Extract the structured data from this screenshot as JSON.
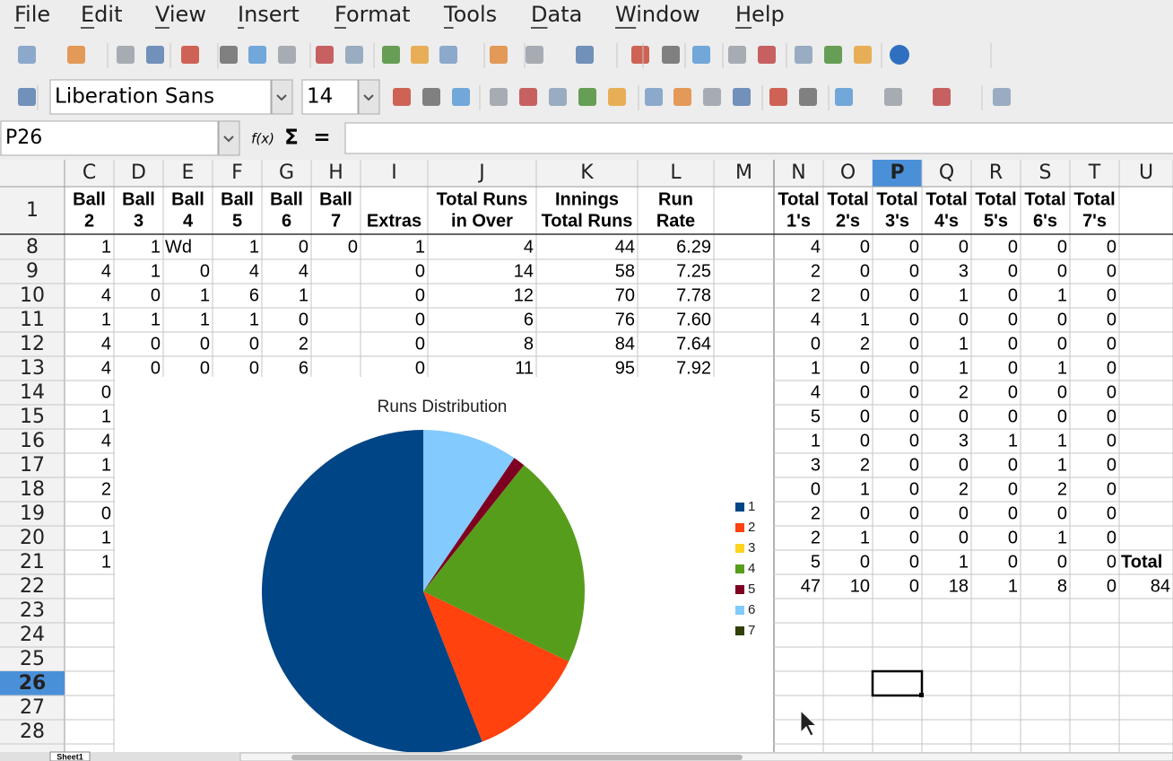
{
  "menu": [
    "File",
    "Edit",
    "View",
    "Insert",
    "Format",
    "Tools",
    "Data",
    "Window",
    "Help"
  ],
  "toolbar": {
    "font_name": "Liberation Sans",
    "font_size": "14"
  },
  "formula_bar": {
    "name_box": "P26",
    "buttons": [
      "f(x)",
      "Σ",
      "="
    ]
  },
  "sheet": {
    "tab": "Sheet1",
    "columns": [
      "C",
      "D",
      "E",
      "F",
      "G",
      "H",
      "I",
      "J",
      "K",
      "L",
      "M",
      "N",
      "O",
      "P",
      "Q",
      "R",
      "S",
      "T",
      "U"
    ],
    "header": {
      "number": "1",
      "cells": [
        [
          "Ball",
          "2"
        ],
        [
          "Ball",
          "3"
        ],
        [
          "Ball",
          "4"
        ],
        [
          "Ball",
          "5"
        ],
        [
          "Ball",
          "6"
        ],
        [
          "Ball",
          "7"
        ],
        [
          "Extras"
        ],
        [
          "Total Runs",
          "in Over"
        ],
        [
          "Innings",
          "Total Runs"
        ],
        [
          "Run",
          "Rate"
        ],
        null,
        [
          "Total",
          "1's"
        ],
        [
          "Total",
          "2's"
        ],
        [
          "Total",
          "3's"
        ],
        [
          "Total",
          "4's"
        ],
        [
          "Total",
          "5's"
        ],
        [
          "Total",
          "6's"
        ],
        [
          "Total",
          "7's"
        ],
        null
      ]
    },
    "rows": [
      {
        "number": "8",
        "cells": [
          "1",
          "1",
          "Wd",
          "1",
          "0",
          "0",
          "1",
          "4",
          "44",
          "6.29",
          null,
          "4",
          "0",
          "0",
          "0",
          "0",
          "0",
          "0",
          null
        ]
      },
      {
        "number": "9",
        "cells": [
          "4",
          "1",
          "0",
          "4",
          "4",
          null,
          "0",
          "14",
          "58",
          "7.25",
          null,
          "2",
          "0",
          "0",
          "3",
          "0",
          "0",
          "0",
          null
        ]
      },
      {
        "number": "10",
        "cells": [
          "4",
          "0",
          "1",
          "6",
          "1",
          null,
          "0",
          "12",
          "70",
          "7.78",
          null,
          "2",
          "0",
          "0",
          "1",
          "0",
          "1",
          "0",
          null
        ]
      },
      {
        "number": "11",
        "cells": [
          "1",
          "1",
          "1",
          "1",
          "0",
          null,
          "0",
          "6",
          "76",
          "7.60",
          null,
          "4",
          "1",
          "0",
          "0",
          "0",
          "0",
          "0",
          null
        ]
      },
      {
        "number": "12",
        "cells": [
          "4",
          "0",
          "0",
          "0",
          "2",
          null,
          "0",
          "8",
          "84",
          "7.64",
          null,
          "0",
          "2",
          "0",
          "1",
          "0",
          "0",
          "0",
          null
        ]
      },
      {
        "number": "13",
        "cells": [
          "4",
          "0",
          "0",
          "0",
          "6",
          null,
          "0",
          "11",
          "95",
          "7.92",
          null,
          "1",
          "0",
          "0",
          "1",
          "0",
          "1",
          "0",
          null
        ]
      },
      {
        "number": "14",
        "cells": [
          "0",
          null,
          null,
          null,
          null,
          null,
          null,
          null,
          null,
          null,
          null,
          "4",
          "0",
          "0",
          "2",
          "0",
          "0",
          "0",
          null
        ]
      },
      {
        "number": "15",
        "cells": [
          "1",
          null,
          null,
          null,
          null,
          null,
          null,
          null,
          null,
          null,
          null,
          "5",
          "0",
          "0",
          "0",
          "0",
          "0",
          "0",
          null
        ]
      },
      {
        "number": "16",
        "cells": [
          "4",
          null,
          null,
          null,
          null,
          null,
          null,
          null,
          null,
          null,
          null,
          "1",
          "0",
          "0",
          "3",
          "1",
          "1",
          "0",
          null
        ]
      },
      {
        "number": "17",
        "cells": [
          "1",
          null,
          null,
          null,
          null,
          null,
          null,
          null,
          null,
          null,
          null,
          "3",
          "2",
          "0",
          "0",
          "0",
          "1",
          "0",
          null
        ]
      },
      {
        "number": "18",
        "cells": [
          "2",
          null,
          null,
          null,
          null,
          null,
          null,
          null,
          null,
          null,
          null,
          "0",
          "1",
          "0",
          "2",
          "0",
          "2",
          "0",
          null
        ]
      },
      {
        "number": "19",
        "cells": [
          "0",
          null,
          null,
          null,
          null,
          null,
          null,
          null,
          null,
          null,
          null,
          "2",
          "0",
          "0",
          "0",
          "0",
          "0",
          "0",
          null
        ]
      },
      {
        "number": "20",
        "cells": [
          "1",
          null,
          null,
          null,
          null,
          null,
          null,
          null,
          null,
          null,
          null,
          "2",
          "1",
          "0",
          "0",
          "0",
          "1",
          "0",
          null
        ]
      },
      {
        "number": "21",
        "cells": [
          "1",
          null,
          null,
          null,
          null,
          null,
          null,
          null,
          null,
          null,
          null,
          "5",
          "0",
          "0",
          "1",
          "0",
          "0",
          "0",
          "Total"
        ]
      },
      {
        "number": "22",
        "cells": [
          null,
          null,
          null,
          null,
          null,
          null,
          null,
          null,
          null,
          null,
          null,
          "47",
          "10",
          "0",
          "18",
          "1",
          "8",
          "0",
          "84"
        ]
      },
      {
        "number": "23"
      },
      {
        "number": "24"
      },
      {
        "number": "25"
      },
      {
        "number": "26"
      },
      {
        "number": "27"
      },
      {
        "number": "28"
      }
    ]
  },
  "chart_data": {
    "type": "pie",
    "title": "Runs Distribution",
    "categories": [
      "1",
      "2",
      "3",
      "4",
      "5",
      "6",
      "7"
    ],
    "values": [
      47,
      10,
      0,
      18,
      1,
      8,
      0
    ],
    "colors": [
      "#004586",
      "#ff420e",
      "#ffd320",
      "#579d1c",
      "#7e0021",
      "#83caff",
      "#314004"
    ],
    "legend": "right"
  }
}
